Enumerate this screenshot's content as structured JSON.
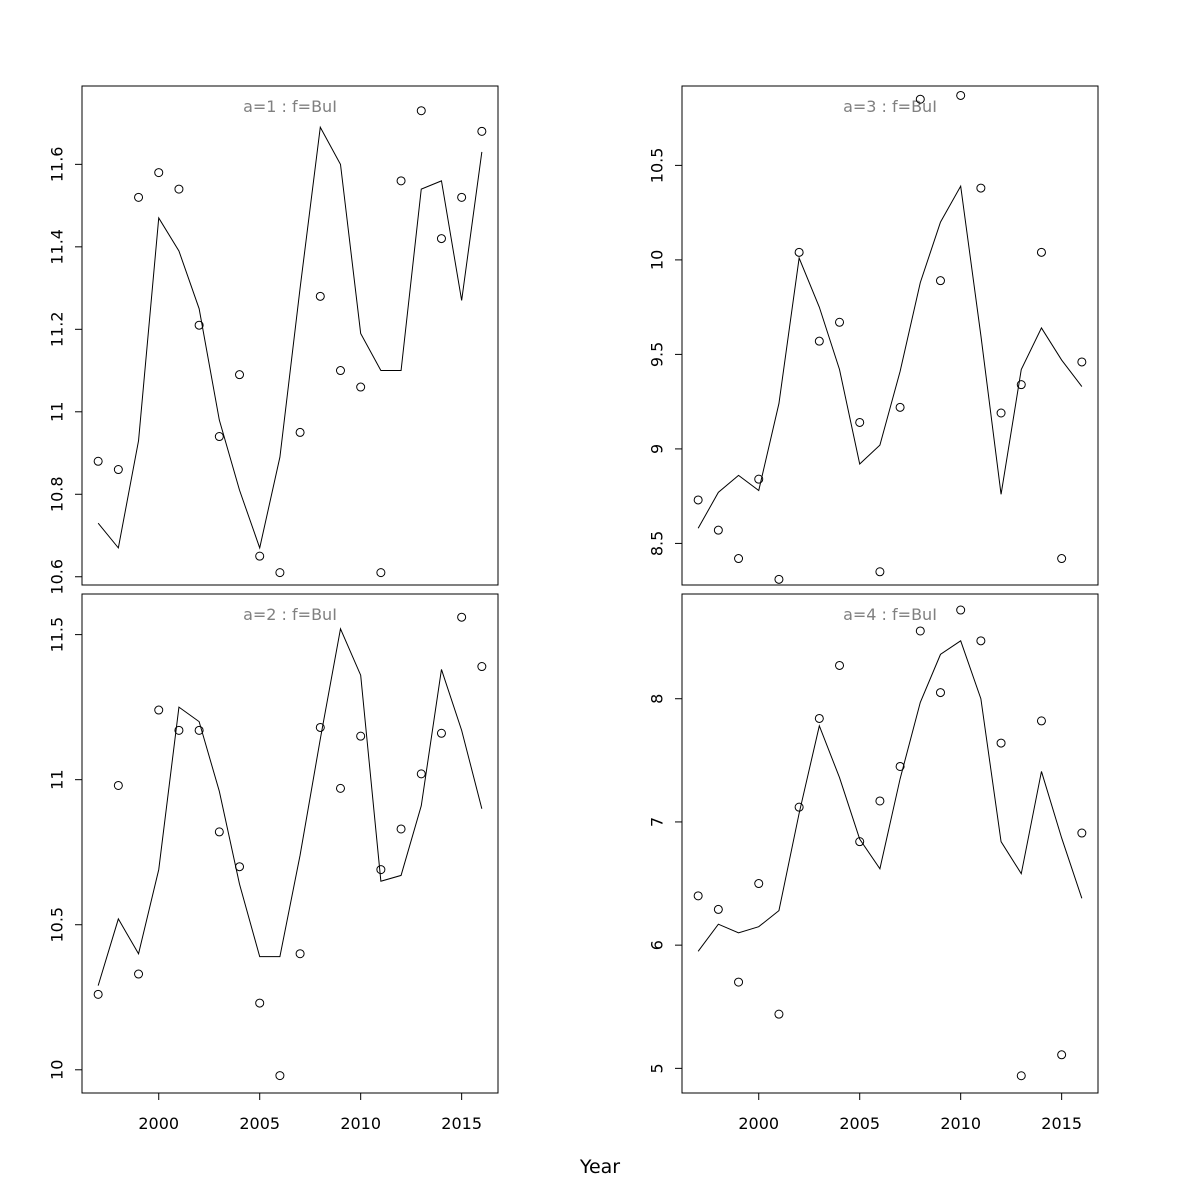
{
  "figure": {
    "xlabel": "Year"
  },
  "colors": {
    "axis": "#000000",
    "series": "#000000",
    "panel_title": "#808080",
    "background": "#ffffff"
  },
  "chart_data": [
    {
      "type": "scatter",
      "title": "a=1  :  f=BuI",
      "xlim": [
        1996.2,
        2016.8
      ],
      "ylim": [
        10.58,
        11.79
      ],
      "xticks": [
        2000,
        2005,
        2010,
        2015
      ],
      "yticks": [
        10.6,
        10.8,
        11.0,
        11.2,
        11.4,
        11.6
      ],
      "show_x_ticks": false,
      "x": [
        1997,
        1998,
        1999,
        2000,
        2001,
        2002,
        2003,
        2004,
        2005,
        2006,
        2007,
        2008,
        2009,
        2010,
        2011,
        2012,
        2013,
        2014,
        2015,
        2016
      ],
      "series": [
        {
          "style": "points",
          "values": [
            10.88,
            10.86,
            11.52,
            11.58,
            11.54,
            11.21,
            10.94,
            11.09,
            10.65,
            10.61,
            10.95,
            11.28,
            11.1,
            11.06,
            10.61,
            11.56,
            11.73,
            11.42,
            11.52,
            11.68
          ]
        },
        {
          "style": "line",
          "values": [
            10.73,
            10.67,
            10.93,
            11.47,
            11.39,
            11.25,
            10.98,
            10.81,
            10.67,
            10.89,
            11.3,
            11.69,
            11.6,
            11.19,
            11.1,
            11.1,
            11.54,
            11.56,
            11.27,
            11.63
          ]
        }
      ]
    },
    {
      "type": "scatter",
      "title": "a=3  :  f=BuI",
      "xlim": [
        1996.2,
        2016.8
      ],
      "ylim": [
        8.28,
        10.92
      ],
      "xticks": [
        2000,
        2005,
        2010,
        2015
      ],
      "yticks": [
        8.5,
        9.0,
        9.5,
        10.0,
        10.5
      ],
      "show_x_ticks": false,
      "x": [
        1997,
        1998,
        1999,
        2000,
        2001,
        2002,
        2003,
        2004,
        2005,
        2006,
        2007,
        2008,
        2009,
        2010,
        2011,
        2012,
        2013,
        2014,
        2015,
        2016
      ],
      "series": [
        {
          "style": "points",
          "values": [
            8.73,
            8.57,
            8.42,
            8.84,
            8.31,
            10.04,
            9.57,
            9.67,
            9.14,
            8.35,
            9.22,
            10.85,
            9.89,
            10.87,
            10.38,
            9.19,
            9.34,
            10.04,
            8.42,
            9.46
          ]
        },
        {
          "style": "line",
          "values": [
            8.58,
            8.77,
            8.86,
            8.78,
            9.24,
            10.01,
            9.75,
            9.42,
            8.92,
            9.02,
            9.41,
            9.88,
            10.2,
            10.39,
            9.6,
            8.76,
            9.42,
            9.64,
            9.47,
            9.33
          ]
        }
      ]
    },
    {
      "type": "scatter",
      "title": "a=2  :  f=BuI",
      "xlim": [
        1996.2,
        2016.8
      ],
      "ylim": [
        9.92,
        11.64
      ],
      "xticks": [
        2000,
        2005,
        2010,
        2015
      ],
      "yticks": [
        10.0,
        10.5,
        11.0,
        11.5
      ],
      "show_x_ticks": true,
      "x": [
        1997,
        1998,
        1999,
        2000,
        2001,
        2002,
        2003,
        2004,
        2005,
        2006,
        2007,
        2008,
        2009,
        2010,
        2011,
        2012,
        2013,
        2014,
        2015,
        2016
      ],
      "series": [
        {
          "style": "points",
          "values": [
            10.26,
            10.98,
            10.33,
            11.24,
            11.17,
            11.17,
            10.82,
            10.7,
            10.23,
            9.98,
            10.4,
            11.18,
            10.97,
            11.15,
            10.69,
            10.83,
            11.02,
            11.16,
            11.56,
            11.39
          ]
        },
        {
          "style": "line",
          "values": [
            10.29,
            10.52,
            10.4,
            10.69,
            11.25,
            11.2,
            10.96,
            10.64,
            10.39,
            10.39,
            10.74,
            11.14,
            11.52,
            11.36,
            10.65,
            10.67,
            10.91,
            11.38,
            11.17,
            10.9
          ]
        }
      ]
    },
    {
      "type": "scatter",
      "title": "a=4  :  f=BuI",
      "xlim": [
        1996.2,
        2016.8
      ],
      "ylim": [
        4.8,
        8.85
      ],
      "xticks": [
        2000,
        2005,
        2010,
        2015
      ],
      "yticks": [
        5,
        6,
        7,
        8
      ],
      "show_x_ticks": true,
      "x": [
        1997,
        1998,
        1999,
        2000,
        2001,
        2002,
        2003,
        2004,
        2005,
        2006,
        2007,
        2008,
        2009,
        2010,
        2011,
        2012,
        2013,
        2014,
        2015,
        2016
      ],
      "series": [
        {
          "style": "points",
          "values": [
            6.4,
            6.29,
            5.7,
            6.5,
            5.44,
            7.12,
            7.84,
            8.27,
            6.84,
            7.17,
            7.45,
            8.55,
            8.05,
            8.72,
            8.47,
            7.64,
            4.94,
            7.82,
            5.11,
            6.91
          ]
        },
        {
          "style": "line",
          "values": [
            5.95,
            6.17,
            6.1,
            6.15,
            6.28,
            7.07,
            7.78,
            7.36,
            6.86,
            6.62,
            7.35,
            7.97,
            8.36,
            8.47,
            8.0,
            6.84,
            6.58,
            7.41,
            6.87,
            6.38
          ]
        }
      ]
    }
  ]
}
